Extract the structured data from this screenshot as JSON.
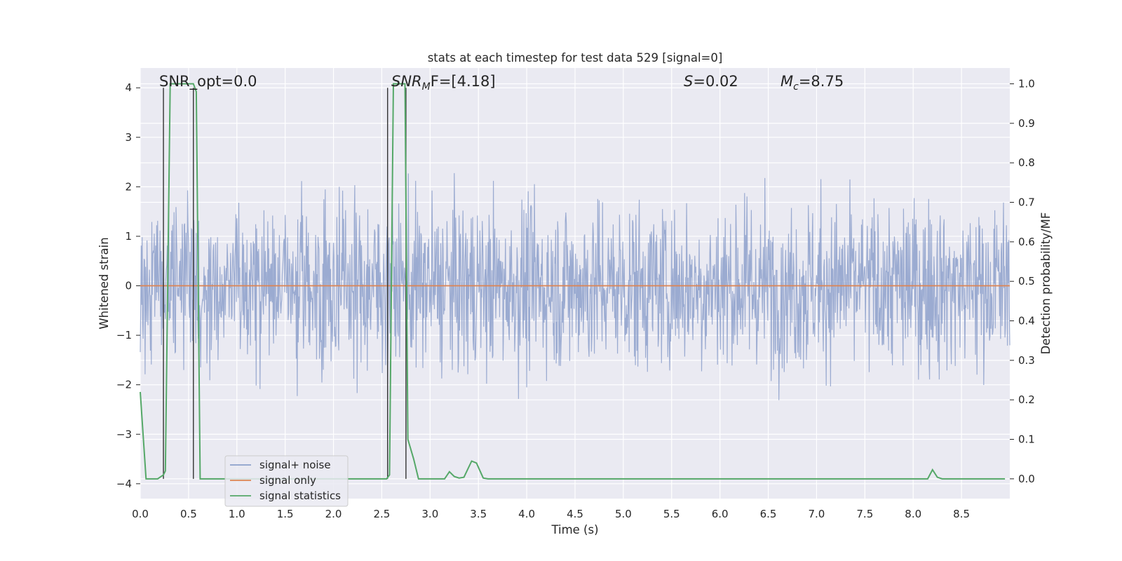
{
  "chart_data": {
    "type": "line",
    "title": "stats at each timestep for test data 529 [signal=0]",
    "xlabel": "Time (s)",
    "ylabel_left": "Whitened strain",
    "ylabel_right": "Detection probability/MF",
    "xlim": [
      0.0,
      9.0
    ],
    "ylim_left": [
      -4.3,
      4.4
    ],
    "ylim_right": [
      -0.05,
      1.04
    ],
    "x_ticks": [
      "0.0",
      "0.5",
      "1.0",
      "1.5",
      "2.0",
      "2.5",
      "3.0",
      "3.5",
      "4.0",
      "4.5",
      "5.0",
      "5.5",
      "6.0",
      "6.5",
      "7.0",
      "7.5",
      "8.0",
      "8.5"
    ],
    "y_ticks_left": [
      "−4",
      "−3",
      "−2",
      "−1",
      "0",
      "1",
      "2",
      "3",
      "4"
    ],
    "y_ticks_right": [
      "0.0",
      "0.1",
      "0.2",
      "0.3",
      "0.4",
      "0.5",
      "0.6",
      "0.7",
      "0.8",
      "0.9",
      "1.0"
    ],
    "grid": true,
    "legend_position": "lower-left",
    "annotations": {
      "snr_opt": "SNR_opt=0.0",
      "snr_mf_base": "SNR",
      "snr_mf_sub": "M",
      "snr_mf_rest": "F=[4.18]",
      "s_italic": "S",
      "s_value": "=0.02",
      "mc_base": "M",
      "mc_sub": "c",
      "mc_value": "=8.75"
    },
    "series": [
      {
        "name": "signal+ noise",
        "color": "#8da0cb",
        "axis": "left",
        "description_range": [
          -3.7,
          3.7
        ]
      },
      {
        "name": "signal only",
        "color": "#dd8452",
        "axis": "left",
        "x": [
          0.0,
          9.0
        ],
        "y": [
          0.0,
          0.0
        ]
      },
      {
        "name": "signal statistics",
        "color": "#55a868",
        "axis": "right",
        "x": [
          0.0,
          0.06,
          0.18,
          0.24,
          0.26,
          0.31,
          0.55,
          0.58,
          0.62,
          2.55,
          2.58,
          2.62,
          2.74,
          2.77,
          2.83,
          2.88,
          3.15,
          3.2,
          3.25,
          3.3,
          3.35,
          3.43,
          3.48,
          3.55,
          3.6,
          8.15,
          8.2,
          8.25,
          8.3,
          8.95
        ],
        "y": [
          0.22,
          0.0,
          0.0,
          0.01,
          0.02,
          1.0,
          1.0,
          0.98,
          0.0,
          0.0,
          0.01,
          1.0,
          1.0,
          0.1,
          0.05,
          0.0,
          0.0,
          0.018,
          0.006,
          0.002,
          0.004,
          0.045,
          0.04,
          0.002,
          0.0,
          0.0,
          0.023,
          0.004,
          0.0,
          0.0
        ]
      }
    ],
    "vertical_lines_x": [
      0.24,
      0.55,
      2.56,
      2.75
    ],
    "vertical_lines_color": "#333333"
  }
}
